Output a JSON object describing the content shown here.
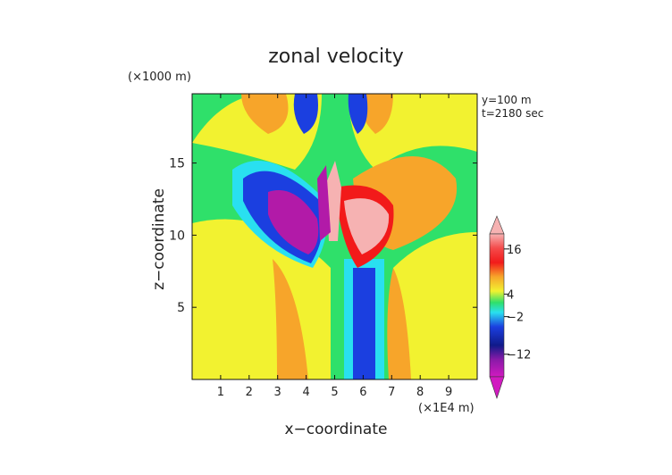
{
  "chart_data": {
    "type": "heatmap",
    "title": "zonal velocity",
    "xlabel": "x−coordinate",
    "ylabel": "z−coordinate",
    "x_units": "(×1E4 m)",
    "y_units": "(×1000 m)",
    "annotations": [
      "y=100 m",
      "t=2180 sec"
    ],
    "xlim": [
      0,
      10
    ],
    "ylim": [
      0,
      19.8
    ],
    "x_ticks": [
      "1",
      "2",
      "3",
      "4",
      "5",
      "6",
      "7",
      "8",
      "9"
    ],
    "y_ticks": [
      "5",
      "10",
      "15"
    ],
    "colorbar": {
      "ticks": [
        "16",
        "4",
        "−2",
        "−12"
      ],
      "tick_values": [
        16,
        4,
        -2,
        -12
      ],
      "range": [
        -18,
        20
      ],
      "extend": "both"
    },
    "background_field_description": "westerly (positive) above/below regions, strong negative flow left of x=5, strong positive right of x=5 near z=10-15"
  },
  "colors": {
    "background_green": "#2fe06a",
    "yellow": "#f2f230",
    "orange": "#f7a52a",
    "cyan": "#29e0f0",
    "blue": "#1b3fe0",
    "pink": "#f6b2b2",
    "magenta": "#b21aa8"
  }
}
